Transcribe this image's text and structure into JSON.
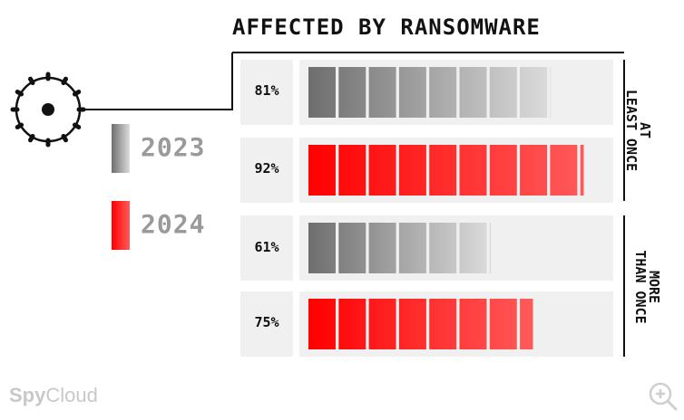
{
  "chart_data": {
    "type": "bar",
    "orientation": "horizontal",
    "title": "AFFECTED BY RANSOMWARE",
    "xlim": [
      0,
      100
    ],
    "groups": [
      {
        "label": "AT LEAST ONCE",
        "bars": [
          {
            "year": "2023",
            "value": 81,
            "label": "81%"
          },
          {
            "year": "2024",
            "value": 92,
            "label": "92%"
          }
        ]
      },
      {
        "label": "MORE THAN ONCE",
        "bars": [
          {
            "year": "2023",
            "value": 61,
            "label": "61%"
          },
          {
            "year": "2024",
            "value": 75,
            "label": "75%"
          }
        ]
      }
    ],
    "legend": [
      {
        "name": "2023",
        "color": "#8f8f8f"
      },
      {
        "name": "2024",
        "color": "#ff1a1a"
      }
    ],
    "legend_position": "left"
  },
  "brand": {
    "name_bold": "Spy",
    "name_light": "Cloud"
  },
  "zoom_icon": "zoom-in-icon",
  "colors": {
    "gray_dark": "#6e6e6e",
    "gray_light": "#dcdcdc",
    "red_dark": "#ff0000",
    "red_light": "#ff5a5a",
    "panel": "#f0f0f0"
  }
}
